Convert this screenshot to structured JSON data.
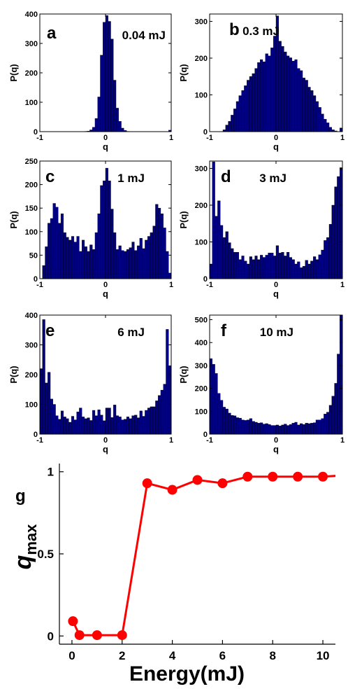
{
  "chart_data": [
    {
      "type": "bar",
      "panel_label": "a",
      "energy_label": "0.04 mJ",
      "xlabel": "q",
      "ylabel": "P(q)",
      "xlim": [
        -1,
        1
      ],
      "ylim": [
        0,
        400
      ],
      "xticks": [
        "-1",
        "0",
        "1"
      ],
      "yticks": [
        0,
        100,
        200,
        300,
        400
      ],
      "bin_centers": [
        -0.98,
        -0.94,
        -0.9,
        -0.86,
        -0.82,
        -0.78,
        -0.74,
        -0.7,
        -0.66,
        -0.62,
        -0.58,
        -0.54,
        -0.5,
        -0.46,
        -0.42,
        -0.38,
        -0.34,
        -0.3,
        -0.26,
        -0.22,
        -0.18,
        -0.14,
        -0.1,
        -0.06,
        -0.02,
        0.02,
        0.06,
        0.1,
        0.14,
        0.18,
        0.22,
        0.26,
        0.3,
        0.34,
        0.38,
        0.42,
        0.46,
        0.5,
        0.54,
        0.58,
        0.62,
        0.66,
        0.7,
        0.74,
        0.78,
        0.82,
        0.86,
        0.9,
        0.94,
        0.98
      ],
      "values": [
        0,
        0,
        0,
        0,
        0,
        0,
        0,
        0,
        0,
        0,
        0,
        0,
        0,
        0,
        0,
        0,
        0,
        1,
        2,
        6,
        15,
        45,
        118,
        260,
        372,
        395,
        375,
        315,
        175,
        80,
        35,
        12,
        4,
        1,
        0,
        0,
        0,
        0,
        0,
        0,
        0,
        0,
        0,
        0,
        0,
        0,
        0,
        0,
        0,
        5
      ]
    },
    {
      "type": "bar",
      "panel_label": "b",
      "energy_label": "0.3 mJ",
      "xlabel": "q",
      "ylabel": "P(q)",
      "xlim": [
        -1,
        1
      ],
      "ylim": [
        0,
        320
      ],
      "xticks": [
        "-1",
        "0",
        "1"
      ],
      "yticks": [
        0,
        100,
        200,
        300
      ],
      "bin_centers": [
        -0.98,
        -0.94,
        -0.9,
        -0.86,
        -0.82,
        -0.78,
        -0.74,
        -0.7,
        -0.66,
        -0.62,
        -0.58,
        -0.54,
        -0.5,
        -0.46,
        -0.42,
        -0.38,
        -0.34,
        -0.3,
        -0.26,
        -0.22,
        -0.18,
        -0.14,
        -0.1,
        -0.06,
        -0.02,
        0.02,
        0.06,
        0.1,
        0.14,
        0.18,
        0.22,
        0.26,
        0.3,
        0.34,
        0.38,
        0.42,
        0.46,
        0.5,
        0.54,
        0.58,
        0.62,
        0.66,
        0.7,
        0.74,
        0.78,
        0.82,
        0.86,
        0.9,
        0.94,
        0.98
      ],
      "values": [
        0,
        0,
        0,
        0,
        0,
        5,
        18,
        28,
        45,
        62,
        82,
        98,
        112,
        125,
        140,
        150,
        158,
        172,
        188,
        196,
        190,
        212,
        206,
        228,
        260,
        315,
        246,
        232,
        217,
        206,
        201,
        192,
        196,
        172,
        166,
        146,
        140,
        121,
        112,
        98,
        82,
        66,
        48,
        34,
        24,
        12,
        5,
        2,
        0,
        10
      ]
    },
    {
      "type": "bar",
      "panel_label": "c",
      "energy_label": "1 mJ",
      "xlabel": "q",
      "ylabel": "P(q)",
      "xlim": [
        -1,
        1
      ],
      "ylim": [
        0,
        250
      ],
      "xticks": [
        "-1",
        "0",
        "1"
      ],
      "yticks": [
        0,
        50,
        100,
        150,
        200,
        250
      ],
      "bin_centers": [
        -0.98,
        -0.94,
        -0.9,
        -0.86,
        -0.82,
        -0.78,
        -0.74,
        -0.7,
        -0.66,
        -0.62,
        -0.58,
        -0.54,
        -0.5,
        -0.46,
        -0.42,
        -0.38,
        -0.34,
        -0.3,
        -0.26,
        -0.22,
        -0.18,
        -0.14,
        -0.1,
        -0.06,
        -0.02,
        0.02,
        0.06,
        0.1,
        0.14,
        0.18,
        0.22,
        0.26,
        0.3,
        0.34,
        0.38,
        0.42,
        0.46,
        0.5,
        0.54,
        0.58,
        0.62,
        0.66,
        0.7,
        0.74,
        0.78,
        0.82,
        0.86,
        0.9,
        0.94,
        0.98
      ],
      "values": [
        0,
        28,
        68,
        118,
        128,
        160,
        152,
        118,
        138,
        98,
        88,
        82,
        90,
        78,
        90,
        58,
        82,
        68,
        58,
        72,
        62,
        98,
        138,
        198,
        208,
        235,
        208,
        148,
        98,
        62,
        70,
        60,
        58,
        62,
        66,
        78,
        60,
        70,
        86,
        64,
        82,
        90,
        98,
        112,
        158,
        150,
        138,
        108,
        58,
        12
      ]
    },
    {
      "type": "bar",
      "panel_label": "d",
      "energy_label": "3 mJ",
      "xlabel": "q",
      "ylabel": "P(q)",
      "xlim": [
        -1,
        1
      ],
      "ylim": [
        0,
        320
      ],
      "xticks": [
        "-1",
        "0",
        "1"
      ],
      "yticks": [
        0,
        100,
        200,
        300
      ],
      "bin_centers": [
        -0.98,
        -0.94,
        -0.9,
        -0.86,
        -0.82,
        -0.78,
        -0.74,
        -0.7,
        -0.66,
        -0.62,
        -0.58,
        -0.54,
        -0.5,
        -0.46,
        -0.42,
        -0.38,
        -0.34,
        -0.3,
        -0.26,
        -0.22,
        -0.18,
        -0.14,
        -0.1,
        -0.06,
        -0.02,
        0.02,
        0.06,
        0.1,
        0.14,
        0.18,
        0.22,
        0.26,
        0.3,
        0.34,
        0.38,
        0.42,
        0.46,
        0.5,
        0.54,
        0.58,
        0.62,
        0.66,
        0.7,
        0.74,
        0.78,
        0.82,
        0.86,
        0.9,
        0.94,
        0.98
      ],
      "values": [
        40,
        318,
        170,
        212,
        145,
        112,
        128,
        98,
        82,
        72,
        72,
        52,
        62,
        48,
        40,
        60,
        52,
        62,
        52,
        64,
        58,
        64,
        70,
        70,
        62,
        90,
        70,
        72,
        62,
        72,
        58,
        52,
        40,
        46,
        30,
        34,
        50,
        40,
        48,
        60,
        52,
        65,
        78,
        104,
        112,
        148,
        200,
        250,
        278,
        302
      ]
    },
    {
      "type": "bar",
      "panel_label": "e",
      "energy_label": "6 mJ",
      "xlabel": "q",
      "ylabel": "P(q)",
      "xlim": [
        -1,
        1
      ],
      "ylim": [
        0,
        400
      ],
      "xticks": [
        "-1",
        "0",
        "1"
      ],
      "yticks": [
        0,
        100,
        200,
        300,
        400
      ],
      "bin_centers": [
        -0.98,
        -0.94,
        -0.9,
        -0.86,
        -0.82,
        -0.78,
        -0.74,
        -0.7,
        -0.66,
        -0.62,
        -0.58,
        -0.54,
        -0.5,
        -0.46,
        -0.42,
        -0.38,
        -0.34,
        -0.3,
        -0.26,
        -0.22,
        -0.18,
        -0.14,
        -0.1,
        -0.06,
        -0.02,
        0.02,
        0.06,
        0.1,
        0.14,
        0.18,
        0.22,
        0.26,
        0.3,
        0.34,
        0.38,
        0.42,
        0.46,
        0.5,
        0.54,
        0.58,
        0.62,
        0.66,
        0.7,
        0.74,
        0.78,
        0.82,
        0.86,
        0.9,
        0.94,
        0.98
      ],
      "values": [
        220,
        385,
        172,
        208,
        118,
        100,
        62,
        50,
        78,
        58,
        52,
        40,
        60,
        48,
        75,
        88,
        58,
        52,
        55,
        46,
        80,
        62,
        82,
        64,
        45,
        88,
        88,
        56,
        98,
        62,
        58,
        48,
        50,
        58,
        52,
        62,
        64,
        55,
        78,
        60,
        80,
        88,
        92,
        92,
        112,
        130,
        148,
        168,
        352,
        230
      ]
    },
    {
      "type": "bar",
      "panel_label": "f",
      "energy_label": "10 mJ",
      "xlabel": "q",
      "ylabel": "P(q)",
      "xlim": [
        -1,
        1
      ],
      "ylim": [
        0,
        520
      ],
      "xticks": [
        "-1",
        "0",
        "1"
      ],
      "yticks": [
        0,
        100,
        200,
        300,
        400,
        500
      ],
      "bin_centers": [
        -0.98,
        -0.94,
        -0.9,
        -0.86,
        -0.82,
        -0.78,
        -0.74,
        -0.7,
        -0.66,
        -0.62,
        -0.58,
        -0.54,
        -0.5,
        -0.46,
        -0.42,
        -0.38,
        -0.34,
        -0.3,
        -0.26,
        -0.22,
        -0.18,
        -0.14,
        -0.1,
        -0.06,
        -0.02,
        0.02,
        0.06,
        0.1,
        0.14,
        0.18,
        0.22,
        0.26,
        0.3,
        0.34,
        0.38,
        0.42,
        0.46,
        0.5,
        0.54,
        0.58,
        0.62,
        0.66,
        0.7,
        0.74,
        0.78,
        0.82,
        0.86,
        0.9,
        0.94,
        0.98
      ],
      "values": [
        330,
        305,
        265,
        178,
        148,
        118,
        110,
        92,
        82,
        80,
        72,
        70,
        62,
        60,
        62,
        68,
        56,
        52,
        48,
        50,
        44,
        46,
        42,
        38,
        38,
        40,
        36,
        40,
        44,
        38,
        42,
        48,
        52,
        40,
        46,
        42,
        48,
        46,
        48,
        50,
        62,
        62,
        68,
        88,
        96,
        126,
        166,
        222,
        350,
        520
      ]
    },
    {
      "type": "line",
      "panel_label": "g",
      "xlabel": "Energy(mJ)",
      "ylabel": "q",
      "ylabel_sub": "max",
      "xlim": [
        -0.5,
        10.5
      ],
      "ylim": [
        -0.05,
        1.05
      ],
      "xticks": [
        0,
        2,
        4,
        6,
        8,
        10
      ],
      "yticks": [
        0,
        0.5,
        1
      ],
      "x": [
        0.04,
        0.3,
        1,
        2,
        3,
        4,
        5,
        6,
        7,
        8,
        9,
        10,
        11
      ],
      "y": [
        0.09,
        0.005,
        0.005,
        0.005,
        0.93,
        0.89,
        0.95,
        0.93,
        0.97,
        0.97,
        0.97,
        0.97,
        0.98
      ],
      "marker_points": 12,
      "color": "#ff0000"
    }
  ],
  "colors": {
    "bar_fill": "#000080",
    "line": "#ff0000"
  }
}
